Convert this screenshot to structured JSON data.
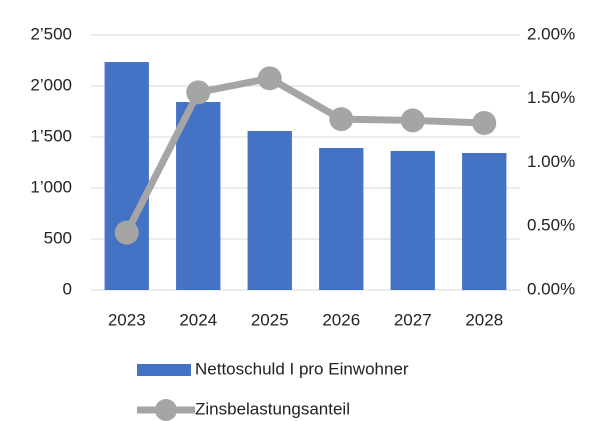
{
  "chart_data": {
    "type": "bar-line",
    "categories": [
      "2023",
      "2024",
      "2025",
      "2026",
      "2027",
      "2028"
    ],
    "series": [
      {
        "name": "Nettoschuld I pro Einwohner",
        "color": "#4472c4",
        "values": [
          2235,
          1843,
          1559,
          1392,
          1363,
          1343
        ]
      },
      {
        "name": "Zinsbelastungsanteil",
        "color": "#a5a5a5",
        "axis": "y2",
        "values": [
          0.45,
          1.55,
          1.66,
          1.34,
          1.33,
          1.31
        ]
      }
    ],
    "ylim": [
      0,
      2500
    ],
    "yticks": [
      0,
      500,
      {
        "value": 1000,
        "label": "1’000"
      },
      {
        "value": 1500,
        "label": "1’500"
      },
      {
        "value": 2000,
        "label": "2’000"
      },
      {
        "value": 2500,
        "label": "2’500"
      }
    ],
    "y2lim": [
      0,
      2
    ],
    "y2ticks": [
      {
        "value": 0,
        "label": "0.00%"
      },
      {
        "value": 0.5,
        "label": "0.50%"
      },
      {
        "value": 1,
        "label": "1.00%"
      },
      {
        "value": 1.5,
        "label": "1.50%"
      },
      {
        "value": 2,
        "label": "2.00%"
      }
    ],
    "grid": true,
    "legend": "bottom"
  }
}
